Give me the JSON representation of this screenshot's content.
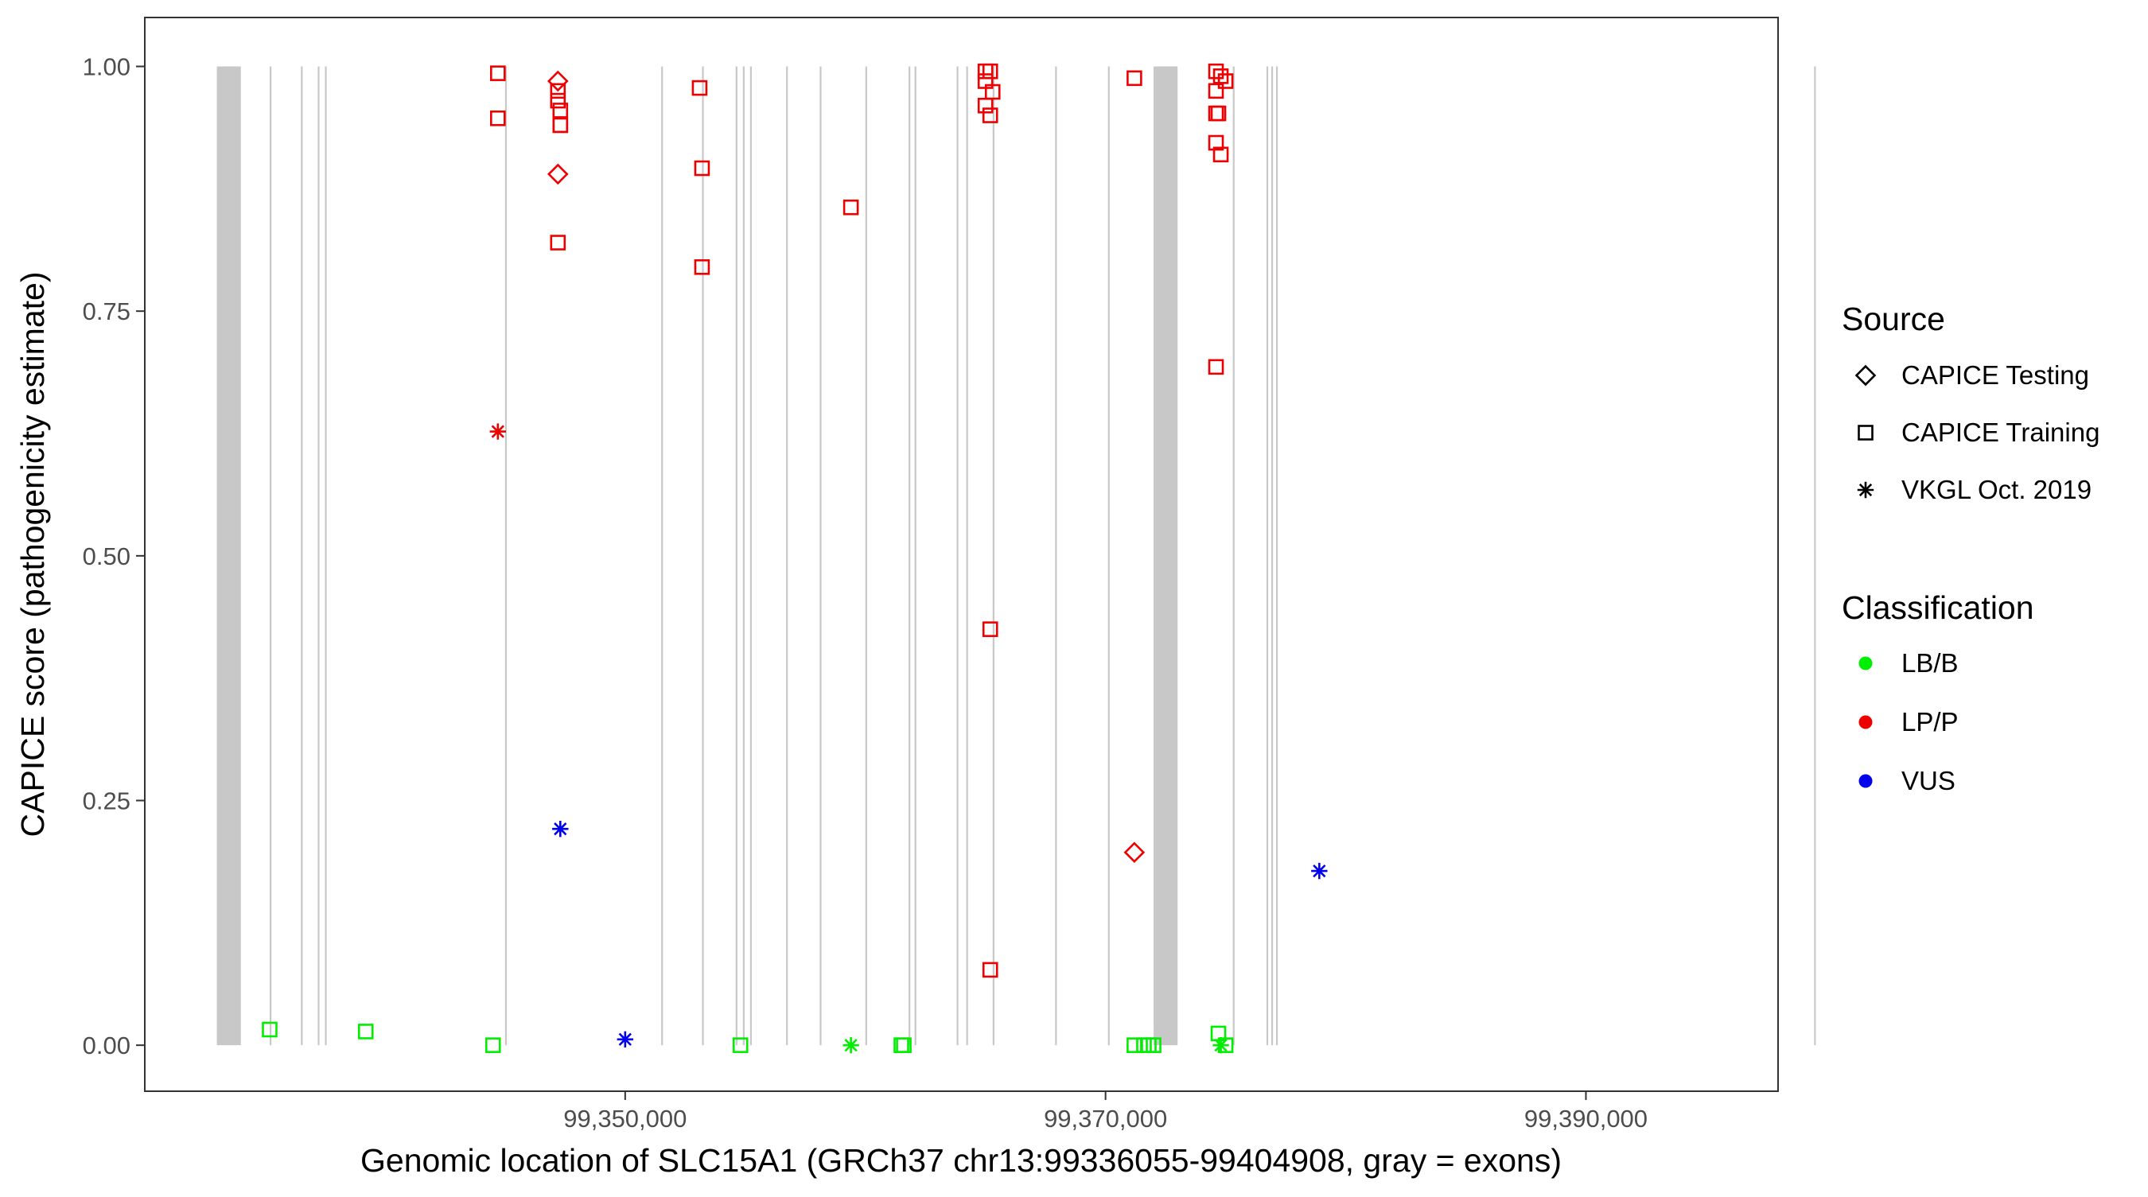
{
  "chart_data": {
    "type": "scatter",
    "title": "",
    "xlabel": "Genomic location of SLC15A1 (GRCh37 chr13:99336055-99404908, gray = exons)",
    "ylabel": "CAPICE score (pathogenicity estimate)",
    "xlim": [
      99330000,
      99398000
    ],
    "ylim": [
      -0.047,
      1.05
    ],
    "x_ticks": [
      99350000,
      99370000,
      99390000
    ],
    "x_tick_labels": [
      "99,350,000",
      "99,370,000",
      "99,390,000"
    ],
    "y_ticks": [
      0,
      0.25,
      0.5,
      0.75,
      1
    ],
    "y_tick_labels": [
      "0.00",
      "0.25",
      "0.50",
      "0.75",
      "1.00"
    ],
    "grid": false,
    "exons": [
      [
        99333000,
        99334000
      ],
      [
        99335200,
        99335250
      ],
      [
        99336500,
        99336550
      ],
      [
        99337200,
        99337250
      ],
      [
        99337500,
        99337550
      ],
      [
        99345000,
        99345050
      ],
      [
        99351500,
        99351550
      ],
      [
        99353200,
        99353250
      ],
      [
        99354600,
        99354650
      ],
      [
        99354900,
        99354950
      ],
      [
        99355200,
        99355250
      ],
      [
        99356700,
        99356750
      ],
      [
        99358100,
        99358150
      ],
      [
        99360000,
        99360050
      ],
      [
        99361800,
        99361850
      ],
      [
        99362050,
        99362100
      ],
      [
        99363800,
        99363850
      ],
      [
        99364200,
        99364250
      ],
      [
        99365300,
        99365350
      ],
      [
        99367900,
        99367950
      ],
      [
        99370100,
        99370150
      ],
      [
        99372000,
        99373000
      ],
      [
        99375300,
        99375350
      ],
      [
        99376700,
        99376750
      ],
      [
        99376900,
        99376950
      ],
      [
        99377100,
        99377150
      ],
      [
        99399500,
        99399550
      ]
    ],
    "legend": {
      "placement": "right",
      "source_title": "Source",
      "classification_title": "Classification",
      "sources": [
        {
          "label": "CAPICE Testing",
          "shape": "diamond"
        },
        {
          "label": "CAPICE Training",
          "shape": "square"
        },
        {
          "label": "VKGL Oct. 2019",
          "shape": "asterisk"
        }
      ],
      "classifications": [
        {
          "label": "LB/B",
          "color": "#00ee00"
        },
        {
          "label": "LP/P",
          "color": "#ee0000"
        },
        {
          "label": "VUS",
          "color": "#0000ee"
        }
      ]
    },
    "series": [
      {
        "source": "CAPICE Testing",
        "classification": "LP/P",
        "points": [
          [
            99347200,
            0.985
          ],
          [
            99347200,
            0.89
          ],
          [
            99371200,
            0.197
          ]
        ]
      },
      {
        "source": "CAPICE Training",
        "classification": "LP/P",
        "points": [
          [
            99344700,
            0.993
          ],
          [
            99344700,
            0.947
          ],
          [
            99347200,
            0.975
          ],
          [
            99347200,
            0.965
          ],
          [
            99347300,
            0.955
          ],
          [
            99347300,
            0.94
          ],
          [
            99347300,
            0.94
          ],
          [
            99347200,
            0.82
          ],
          [
            99353100,
            0.978
          ],
          [
            99353200,
            0.896
          ],
          [
            99353200,
            0.795
          ],
          [
            99359400,
            0.856
          ],
          [
            99365000,
            0.995
          ],
          [
            99365200,
            0.995
          ],
          [
            99365000,
            0.985
          ],
          [
            99365300,
            0.974
          ],
          [
            99365000,
            0.96
          ],
          [
            99365200,
            0.95
          ],
          [
            99365200,
            0.425
          ],
          [
            99365200,
            0.077
          ],
          [
            99371200,
            0.988
          ],
          [
            99374600,
            0.995
          ],
          [
            99374800,
            0.99
          ],
          [
            99375000,
            0.985
          ],
          [
            99374600,
            0.975
          ],
          [
            99374700,
            0.952
          ],
          [
            99374600,
            0.952
          ],
          [
            99374600,
            0.922
          ],
          [
            99374800,
            0.91
          ],
          [
            99374600,
            0.693
          ]
        ]
      },
      {
        "source": "VKGL Oct. 2019",
        "classification": "LP/P",
        "points": [
          [
            99344700,
            0.627
          ]
        ]
      },
      {
        "source": "CAPICE Training",
        "classification": "LB/B",
        "points": [
          [
            99335200,
            0.016
          ],
          [
            99339200,
            0.014
          ],
          [
            99344500,
            0.0
          ],
          [
            99354800,
            0.0
          ],
          [
            99361500,
            0.0
          ],
          [
            99361600,
            0.0
          ],
          [
            99371200,
            0.0
          ],
          [
            99371600,
            0.0
          ],
          [
            99371800,
            0.0
          ],
          [
            99372000,
            0.0
          ],
          [
            99374700,
            0.012
          ],
          [
            99375000,
            0.0
          ]
        ]
      },
      {
        "source": "VKGL Oct. 2019",
        "classification": "LB/B",
        "points": [
          [
            99359400,
            0.0
          ],
          [
            99374800,
            0.0
          ]
        ]
      },
      {
        "source": "VKGL Oct. 2019",
        "classification": "VUS",
        "points": [
          [
            99347300,
            0.221
          ],
          [
            99350000,
            0.006
          ],
          [
            99378900,
            0.178
          ]
        ]
      }
    ]
  }
}
